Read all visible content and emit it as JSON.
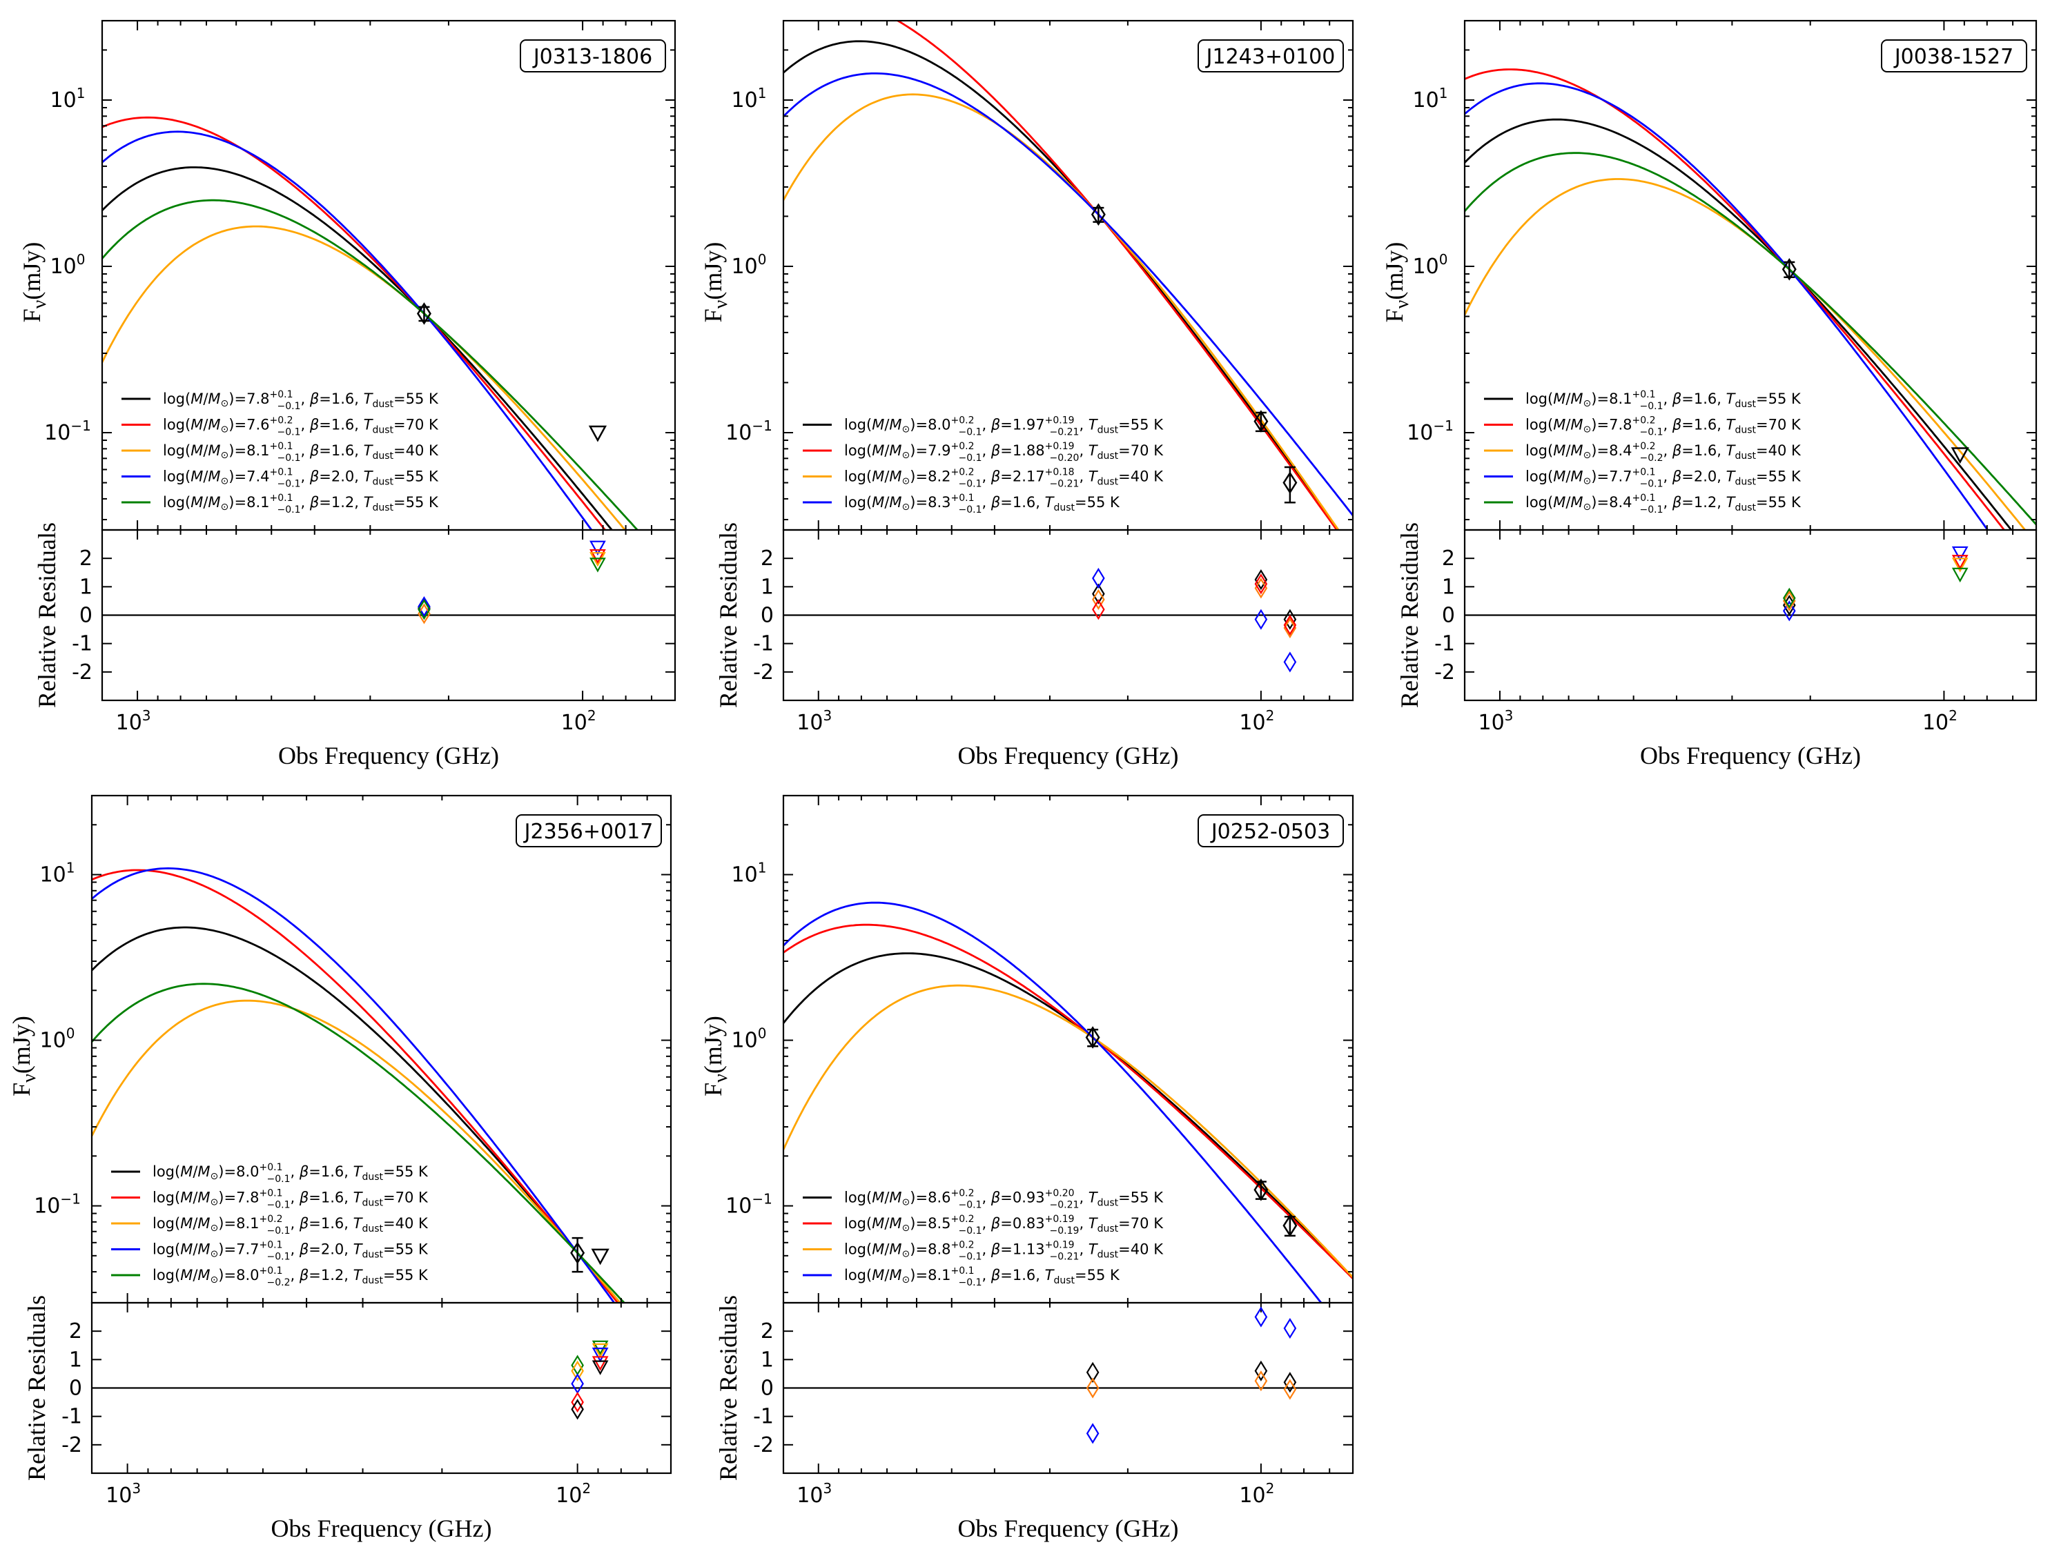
{
  "figure": {
    "xlabel": "Obs Frequency (GHz)",
    "ylabel_flux": "Fν (mJy)",
    "ylabel_flux_main": "F",
    "ylabel_flux_sub": "ν",
    "ylabel_flux_unit": "(mJy)",
    "ylabel_resid": "Relative Residuals",
    "x_ticks": [
      {
        "label": "10",
        "exp": "3",
        "value": 1000
      },
      {
        "label": "10",
        "exp": "2",
        "value": 100
      }
    ],
    "y_ticks_flux": [
      {
        "label": "10",
        "exp": "1",
        "value": 10
      },
      {
        "label": "10",
        "exp": "0",
        "value": 1
      },
      {
        "label": "10",
        "exp": "−1",
        "value": 0.1
      }
    ],
    "y_ticks_resid": [
      "2",
      "1",
      "0",
      "-1",
      "-2"
    ]
  },
  "colors": {
    "black": "#000000",
    "red": "#ff0000",
    "orange": "#ffa500",
    "blue": "#0000ff",
    "green": "#008000",
    "resid_orange": "#ff7f0e"
  },
  "chart_data": [
    {
      "type": "scatter",
      "title": "J0313-1806",
      "xscale": "log-reversed",
      "yscale": "log",
      "xlim": [
        1200,
        62
      ],
      "ylim": [
        0.026,
        30
      ],
      "resid_ylim": [
        -3,
        3
      ],
      "detections": [
        {
          "x": 227,
          "y": 0.52,
          "err": 0.05
        }
      ],
      "upper_limits": [
        {
          "x": 92.5,
          "y": 0.1
        }
      ],
      "models": [
        {
          "legend": "log(M/M⊙)=7.8+0.1−0.1, β=1.6, Tdust=55 K",
          "m": "7.8",
          "mu": "+0.1",
          "ml": "−0.1",
          "beta": "1.6",
          "bu": "",
          "bl": "",
          "t": "55",
          "color": "#000000",
          "T": 55,
          "b": 1.6
        },
        {
          "legend": "log(M/M⊙)=7.6+0.2−0.1, β=1.6, Tdust=70 K",
          "m": "7.6",
          "mu": "+0.2",
          "ml": "−0.1",
          "beta": "1.6",
          "bu": "",
          "bl": "",
          "t": "70",
          "color": "#ff0000",
          "T": 70,
          "b": 1.6
        },
        {
          "legend": "log(M/M⊙)=8.1+0.1−0.1, β=1.6, Tdust=40 K",
          "m": "8.1",
          "mu": "+0.1",
          "ml": "−0.1",
          "beta": "1.6",
          "bu": "",
          "bl": "",
          "t": "40",
          "color": "#ffa500",
          "T": 40,
          "b": 1.6
        },
        {
          "legend": "log(M/M⊙)=7.4+0.1−0.1, β=2.0, Tdust=55 K",
          "m": "7.4",
          "mu": "+0.1",
          "ml": "−0.1",
          "beta": "2.0",
          "bu": "",
          "bl": "",
          "t": "55",
          "color": "#0000ff",
          "T": 55,
          "b": 2.0
        },
        {
          "legend": "log(M/M⊙)=8.1+0.1−0.1, β=1.2, Tdust=55 K",
          "m": "8.1",
          "mu": "+0.1",
          "ml": "−0.1",
          "beta": "1.2",
          "bu": "",
          "bl": "",
          "t": "55",
          "color": "#008000",
          "T": 55,
          "b": 1.2
        }
      ],
      "residuals": [
        {
          "x": 227,
          "y": 0.25,
          "kind": "diamond",
          "color": "#000000"
        },
        {
          "x": 227,
          "y": 0.3,
          "kind": "diamond",
          "color": "#0000ff"
        },
        {
          "x": 227,
          "y": 0.05,
          "kind": "diamond",
          "color": "#ff7f0e"
        },
        {
          "x": 227,
          "y": 0.2,
          "kind": "diamond",
          "color": "#008000"
        },
        {
          "x": 92.5,
          "y": 2.4,
          "kind": "triangle",
          "color": "#0000ff"
        },
        {
          "x": 92.5,
          "y": 2.1,
          "kind": "triangle",
          "color": "#ff0000"
        },
        {
          "x": 92.5,
          "y": 2.0,
          "kind": "triangle",
          "color": "#ffa500"
        },
        {
          "x": 92.5,
          "y": 1.8,
          "kind": "triangle",
          "color": "#008000"
        }
      ]
    },
    {
      "type": "scatter",
      "title": "J1243+0100",
      "xscale": "log-reversed",
      "yscale": "log",
      "xlim": [
        1200,
        62
      ],
      "ylim": [
        0.026,
        30
      ],
      "resid_ylim": [
        -3,
        3
      ],
      "detections": [
        {
          "x": 233,
          "y": 2.05,
          "err": 0.2
        },
        {
          "x": 100,
          "y": 0.117,
          "err": 0.015
        },
        {
          "x": 86,
          "y": 0.05,
          "err": 0.012
        }
      ],
      "upper_limits": [],
      "models": [
        {
          "legend": "log(M/M⊙)=8.0+0.2−0.1, β=1.97+0.19−0.21, Tdust=55 K",
          "m": "8.0",
          "mu": "+0.2",
          "ml": "−0.1",
          "beta": "1.97",
          "bu": "+0.19",
          "bl": "−0.21",
          "t": "55",
          "color": "#000000",
          "T": 55,
          "b": 1.97
        },
        {
          "legend": "log(M/M⊙)=7.9+0.2−0.1, β=1.88+0.19−0.20, Tdust=70 K",
          "m": "7.9",
          "mu": "+0.2",
          "ml": "−0.1",
          "beta": "1.88",
          "bu": "+0.19",
          "bl": "−0.20",
          "t": "70",
          "color": "#ff0000",
          "T": 70,
          "b": 1.88
        },
        {
          "legend": "log(M/M⊙)=8.2+0.2−0.1, β=2.17+0.18−0.21, Tdust=40 K",
          "m": "8.2",
          "mu": "+0.2",
          "ml": "−0.1",
          "beta": "2.17",
          "bu": "+0.18",
          "bl": "−0.21",
          "t": "40",
          "color": "#ffa500",
          "T": 40,
          "b": 2.17
        },
        {
          "legend": "log(M/M⊙)=8.3+0.1−0.1, β=1.6, Tdust=55 K",
          "m": "8.3",
          "mu": "+0.1",
          "ml": "−0.1",
          "beta": "1.6",
          "bu": "",
          "bl": "",
          "t": "55",
          "color": "#0000ff",
          "T": 55,
          "b": 1.6
        }
      ],
      "residuals": [
        {
          "x": 233,
          "y": 0.75,
          "kind": "diamond",
          "color": "#000000"
        },
        {
          "x": 233,
          "y": 1.3,
          "kind": "diamond",
          "color": "#0000ff"
        },
        {
          "x": 233,
          "y": 0.55,
          "kind": "diamond",
          "color": "#ff7f0e"
        },
        {
          "x": 233,
          "y": 0.2,
          "kind": "diamond",
          "color": "#ff0000"
        },
        {
          "x": 100,
          "y": 1.25,
          "kind": "diamond",
          "color": "#000000"
        },
        {
          "x": 100,
          "y": 0.95,
          "kind": "diamond",
          "color": "#ff7f0e"
        },
        {
          "x": 100,
          "y": 1.1,
          "kind": "diamond",
          "color": "#ff0000"
        },
        {
          "x": 100,
          "y": -0.15,
          "kind": "diamond",
          "color": "#0000ff"
        },
        {
          "x": 86,
          "y": -0.15,
          "kind": "diamond",
          "color": "#000000"
        },
        {
          "x": 86,
          "y": -0.45,
          "kind": "diamond",
          "color": "#ff7f0e"
        },
        {
          "x": 86,
          "y": -0.35,
          "kind": "diamond",
          "color": "#ff0000"
        },
        {
          "x": 86,
          "y": -1.65,
          "kind": "diamond",
          "color": "#0000ff"
        }
      ]
    },
    {
      "type": "scatter",
      "title": "J0038-1527",
      "xscale": "log-reversed",
      "yscale": "log",
      "xlim": [
        1200,
        62
      ],
      "ylim": [
        0.026,
        30
      ],
      "resid_ylim": [
        -3,
        3
      ],
      "detections": [
        {
          "x": 223,
          "y": 0.96,
          "err": 0.1
        }
      ],
      "upper_limits": [
        {
          "x": 92,
          "y": 0.074
        }
      ],
      "models": [
        {
          "legend": "log(M/M⊙)=8.1+0.1−0.1, β=1.6, Tdust=55 K",
          "m": "8.1",
          "mu": "+0.1",
          "ml": "−0.1",
          "beta": "1.6",
          "bu": "",
          "bl": "",
          "t": "55",
          "color": "#000000",
          "T": 55,
          "b": 1.6
        },
        {
          "legend": "log(M/M⊙)=7.8+0.2−0.1, β=1.6, Tdust=70 K",
          "m": "7.8",
          "mu": "+0.2",
          "ml": "−0.1",
          "beta": "1.6",
          "bu": "",
          "bl": "",
          "t": "70",
          "color": "#ff0000",
          "T": 70,
          "b": 1.6
        },
        {
          "legend": "log(M/M⊙)=8.4+0.2−0.2, β=1.6, Tdust=40 K",
          "m": "8.4",
          "mu": "+0.2",
          "ml": "−0.2",
          "beta": "1.6",
          "bu": "",
          "bl": "",
          "t": "40",
          "color": "#ffa500",
          "T": 40,
          "b": 1.6
        },
        {
          "legend": "log(M/M⊙)=7.7+0.1−0.1, β=2.0, Tdust=55 K",
          "m": "7.7",
          "mu": "+0.1",
          "ml": "−0.1",
          "beta": "2.0",
          "bu": "",
          "bl": "",
          "t": "55",
          "color": "#0000ff",
          "T": 55,
          "b": 2.0
        },
        {
          "legend": "log(M/M⊙)=8.4+0.1−0.1, β=1.2, Tdust=55 K",
          "m": "8.4",
          "mu": "+0.1",
          "ml": "−0.1",
          "beta": "1.2",
          "bu": "",
          "bl": "",
          "t": "55",
          "color": "#008000",
          "T": 55,
          "b": 1.2
        }
      ],
      "residuals": [
        {
          "x": 223,
          "y": 0.35,
          "kind": "diamond",
          "color": "#000000"
        },
        {
          "x": 223,
          "y": 0.15,
          "kind": "diamond",
          "color": "#0000ff"
        },
        {
          "x": 223,
          "y": 0.5,
          "kind": "diamond",
          "color": "#ff7f0e"
        },
        {
          "x": 223,
          "y": 0.6,
          "kind": "diamond",
          "color": "#008000"
        },
        {
          "x": 92,
          "y": 2.2,
          "kind": "triangle",
          "color": "#0000ff"
        },
        {
          "x": 92,
          "y": 1.9,
          "kind": "triangle",
          "color": "#ff0000"
        },
        {
          "x": 92,
          "y": 1.8,
          "kind": "triangle",
          "color": "#ffa500"
        },
        {
          "x": 92,
          "y": 1.45,
          "kind": "triangle",
          "color": "#008000"
        }
      ]
    },
    {
      "type": "scatter",
      "title": "J2356+0017",
      "xscale": "log-reversed",
      "yscale": "log",
      "xlim": [
        1200,
        62
      ],
      "ylim": [
        0.026,
        30
      ],
      "resid_ylim": [
        -3,
        3
      ],
      "detections": [
        {
          "x": 100,
          "y": 0.052,
          "err": 0.012
        }
      ],
      "upper_limits": [
        {
          "x": 89,
          "y": 0.05
        }
      ],
      "models": [
        {
          "legend": "log(M/M⊙)=8.0+0.1−0.1, β=1.6, Tdust=55 K",
          "m": "8.0",
          "mu": "+0.1",
          "ml": "−0.1",
          "beta": "1.6",
          "bu": "",
          "bl": "",
          "t": "55",
          "color": "#000000",
          "T": 55,
          "b": 1.6
        },
        {
          "legend": "log(M/M⊙)=7.8+0.1−0.1, β=1.6, Tdust=70 K",
          "m": "7.8",
          "mu": "+0.1",
          "ml": "−0.1",
          "beta": "1.6",
          "bu": "",
          "bl": "",
          "t": "70",
          "color": "#ff0000",
          "T": 70,
          "b": 1.6
        },
        {
          "legend": "log(M/M⊙)=8.1+0.2−0.1, β=1.6, Tdust=40 K",
          "m": "8.1",
          "mu": "+0.2",
          "ml": "−0.1",
          "beta": "1.6",
          "bu": "",
          "bl": "",
          "t": "40",
          "color": "#ffa500",
          "T": 40,
          "b": 1.6
        },
        {
          "legend": "log(M/M⊙)=7.7+0.1−0.1, β=2.0, Tdust=55 K",
          "m": "7.7",
          "mu": "+0.1",
          "ml": "−0.1",
          "beta": "2.0",
          "bu": "",
          "bl": "",
          "t": "55",
          "color": "#0000ff",
          "T": 55,
          "b": 2.0
        },
        {
          "legend": "log(M/M⊙)=8.0+0.1−0.2, β=1.2, Tdust=55 K",
          "m": "8.0",
          "mu": "+0.1",
          "ml": "−0.2",
          "beta": "1.2",
          "bu": "",
          "bl": "",
          "t": "55",
          "color": "#008000",
          "T": 55,
          "b": 1.2
        }
      ],
      "residuals": [
        {
          "x": 100,
          "y": 0.8,
          "kind": "diamond",
          "color": "#008000"
        },
        {
          "x": 100,
          "y": 0.6,
          "kind": "diamond",
          "color": "#ffa500"
        },
        {
          "x": 100,
          "y": 0.15,
          "kind": "diamond",
          "color": "#0000ff"
        },
        {
          "x": 100,
          "y": -0.5,
          "kind": "diamond",
          "color": "#ff0000"
        },
        {
          "x": 100,
          "y": -0.75,
          "kind": "diamond",
          "color": "#000000"
        },
        {
          "x": 89,
          "y": 1.45,
          "kind": "triangle",
          "color": "#008000"
        },
        {
          "x": 89,
          "y": 1.35,
          "kind": "triangle",
          "color": "#ffa500"
        },
        {
          "x": 89,
          "y": 1.2,
          "kind": "triangle",
          "color": "#0000ff"
        },
        {
          "x": 89,
          "y": 0.9,
          "kind": "triangle",
          "color": "#ff0000"
        },
        {
          "x": 89,
          "y": 0.75,
          "kind": "triangle",
          "color": "#000000"
        }
      ]
    },
    {
      "type": "scatter",
      "title": "J0252-0503",
      "xscale": "log-reversed",
      "yscale": "log",
      "xlim": [
        1200,
        62
      ],
      "ylim": [
        0.026,
        30
      ],
      "resid_ylim": [
        -3,
        3
      ],
      "detections": [
        {
          "x": 240,
          "y": 1.04,
          "err": 0.12
        },
        {
          "x": 100,
          "y": 0.125,
          "err": 0.015
        },
        {
          "x": 86,
          "y": 0.076,
          "err": 0.01
        }
      ],
      "upper_limits": [],
      "models": [
        {
          "legend": "log(M/M⊙)=8.6+0.2−0.1, β=0.93+0.20−0.21, Tdust=55 K",
          "m": "8.6",
          "mu": "+0.2",
          "ml": "−0.1",
          "beta": "0.93",
          "bu": "+0.20",
          "bl": "−0.21",
          "t": "55",
          "color": "#000000",
          "T": 55,
          "b": 0.93
        },
        {
          "legend": "log(M/M⊙)=8.5+0.2−0.1, β=0.83+0.19−0.19, Tdust=70 K",
          "m": "8.5",
          "mu": "+0.2",
          "ml": "−0.1",
          "beta": "0.83",
          "bu": "+0.19",
          "bl": "−0.19",
          "t": "70",
          "color": "#ff0000",
          "T": 70,
          "b": 0.83
        },
        {
          "legend": "log(M/M⊙)=8.8+0.2−0.1, β=1.13+0.19−0.21, Tdust=40 K",
          "m": "8.8",
          "mu": "+0.2",
          "ml": "−0.1",
          "beta": "1.13",
          "bu": "+0.19",
          "bl": "−0.21",
          "t": "40",
          "color": "#ffa500",
          "T": 40,
          "b": 1.13
        },
        {
          "legend": "log(M/M⊙)=8.1+0.1−0.1, β=1.6, Tdust=55 K",
          "m": "8.1",
          "mu": "+0.1",
          "ml": "−0.1",
          "beta": "1.6",
          "bu": "",
          "bl": "",
          "t": "55",
          "color": "#0000ff",
          "T": 55,
          "b": 1.6
        }
      ],
      "residuals": [
        {
          "x": 240,
          "y": 0.55,
          "kind": "diamond",
          "color": "#000000"
        },
        {
          "x": 240,
          "y": 0.0,
          "kind": "diamond",
          "color": "#ff7f0e"
        },
        {
          "x": 240,
          "y": -1.6,
          "kind": "diamond",
          "color": "#0000ff"
        },
        {
          "x": 100,
          "y": 0.6,
          "kind": "diamond",
          "color": "#000000"
        },
        {
          "x": 100,
          "y": 0.25,
          "kind": "diamond",
          "color": "#ff7f0e"
        },
        {
          "x": 100,
          "y": 2.5,
          "kind": "diamond",
          "color": "#0000ff"
        },
        {
          "x": 86,
          "y": 0.2,
          "kind": "diamond",
          "color": "#000000"
        },
        {
          "x": 86,
          "y": -0.05,
          "kind": "diamond",
          "color": "#ff7f0e"
        },
        {
          "x": 86,
          "y": 2.1,
          "kind": "diamond",
          "color": "#0000ff"
        }
      ]
    }
  ]
}
